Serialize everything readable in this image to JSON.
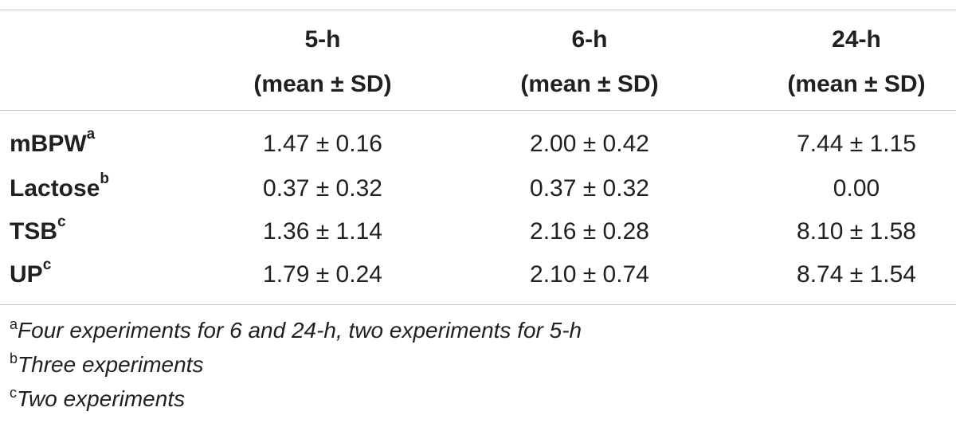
{
  "table": {
    "columns": [
      {
        "line1": "5-h",
        "line2": "(mean ± SD)"
      },
      {
        "line1": "6-h",
        "line2": "(mean ± SD)"
      },
      {
        "line1": "24-h",
        "line2": "(mean ± SD)"
      }
    ],
    "rows": [
      {
        "label": "mBPW",
        "sup": "a",
        "values": [
          "1.47 ± 0.16",
          "2.00 ± 0.42",
          "7.44 ± 1.15"
        ]
      },
      {
        "label": "Lactose",
        "sup": "b",
        "values": [
          "0.37 ± 0.32",
          "0.37 ± 0.32",
          "0.00"
        ]
      },
      {
        "label": "TSB",
        "sup": "c",
        "values": [
          "1.36 ± 1.14",
          "2.16 ± 0.28",
          "8.10 ± 1.58"
        ]
      },
      {
        "label": "UP",
        "sup": "c",
        "values": [
          "1.79 ± 0.24",
          "2.10 ± 0.74",
          "8.74 ± 1.54"
        ]
      }
    ]
  },
  "footnotes": [
    {
      "mark": "a",
      "text": "Four experiments for 6 and 24-h, two experiments for 5-h"
    },
    {
      "mark": "b",
      "text": "Three experiments"
    },
    {
      "mark": "c",
      "text": "Two experiments"
    }
  ],
  "colors": {
    "text": "#231f20",
    "rule": "#c8c8c8"
  }
}
